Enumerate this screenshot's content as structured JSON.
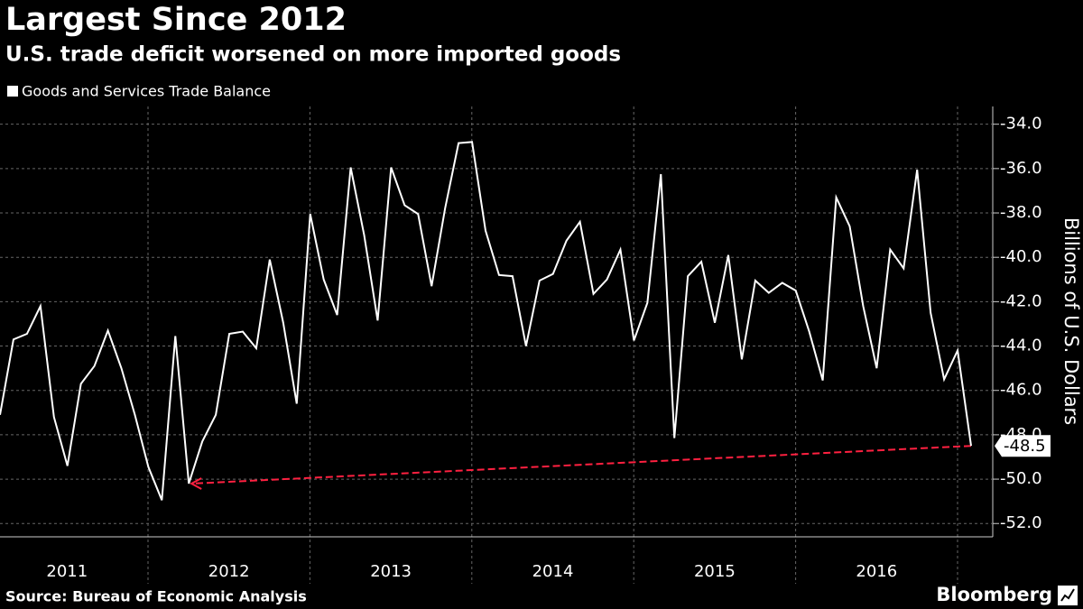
{
  "chart_data": {
    "type": "line",
    "title": "Largest Since 2012",
    "subtitle": "U.S. trade deficit worsened on more imported goods",
    "y_label": "Billions of U.S. Dollars",
    "source": "Source: Bureau of Economic Analysis",
    "brand": "Bloomberg",
    "year_labels": [
      "2011",
      "2012",
      "2013",
      "2014",
      "2015",
      "2016"
    ],
    "series": [
      {
        "name": "Goods and Services Trade Balance",
        "color": "#ffffff",
        "values": [
          -47.1,
          -43.7,
          -43.45,
          -42.2,
          -47.2,
          -49.4,
          -45.7,
          -44.9,
          -43.3,
          -45,
          -47.1,
          -49.45,
          -50.95,
          -43.55,
          -50.2,
          -48.3,
          -47.1,
          -43.45,
          -43.35,
          -44.1,
          -40.1,
          -42.95,
          -46.6,
          -38.05,
          -41,
          -42.6,
          -35.95,
          -39,
          -42.85,
          -35.95,
          -37.65,
          -38.05,
          -41.3,
          -37.8,
          -34.85,
          -34.8,
          -38.8,
          -40.8,
          -40.85,
          -44,
          -41.05,
          -40.75,
          -39.25,
          -38.4,
          -41.65,
          -41,
          -39.65,
          -43.75,
          -42.05,
          -36.25,
          -48.15,
          -40.85,
          -40.2,
          -42.95,
          -39.9,
          -44.6,
          -41.05,
          -41.6,
          -41.15,
          -41.5,
          -43.35,
          -45.55,
          -37.3,
          -38.6,
          -42.2,
          -45,
          -39.65,
          -40.5,
          -36.05,
          -42.5,
          -45.5,
          -44.2,
          -48.5
        ]
      }
    ],
    "ylim": [
      -52.6,
      -33.2
    ],
    "yticks": [
      {
        "value": -34,
        "label": "-34.0"
      },
      {
        "value": -36,
        "label": "-36.0"
      },
      {
        "value": -38,
        "label": "-38.0"
      },
      {
        "value": -40,
        "label": "-40.0"
      },
      {
        "value": -42,
        "label": "-42.0"
      },
      {
        "value": -44,
        "label": "-44.0"
      },
      {
        "value": -46,
        "label": "-46.0"
      },
      {
        "value": -48,
        "label": "-48.0"
      },
      {
        "value": -50,
        "label": "-50.0"
      },
      {
        "value": -52,
        "label": "-52.0"
      }
    ],
    "grid": true,
    "arrow_color": "#ff2040"
  }
}
